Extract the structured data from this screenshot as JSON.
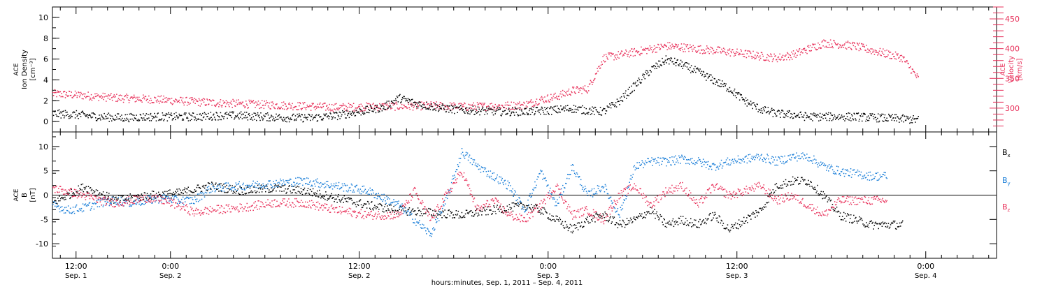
{
  "chart_data": [
    {
      "type": "scatter",
      "panel": "top",
      "ylabel_left": [
        "ACE",
        "Ion Density",
        "[cm⁻³]"
      ],
      "ylabel_right": [
        "ACE",
        "Velocity",
        "[km/s]"
      ],
      "ylim_left": [
        -1,
        11
      ],
      "yticks_left": [
        0,
        2,
        4,
        6,
        8,
        10
      ],
      "ylim_right": [
        260,
        470
      ],
      "yticks_right": [
        300,
        350,
        400,
        450
      ],
      "colors": {
        "density": "#000000",
        "velocity": "#e8305a"
      },
      "series": [
        {
          "key": "density",
          "axis": "left",
          "points": [
            [
              0,
              0.8
            ],
            [
              3,
              0.7
            ],
            [
              6,
              0.5
            ],
            [
              9,
              0.4
            ],
            [
              12,
              0.5
            ],
            [
              15,
              0.5
            ],
            [
              18,
              0.5
            ],
            [
              21,
              0.6
            ],
            [
              24,
              0.6
            ],
            [
              27,
              0.5
            ],
            [
              30,
              0.4
            ],
            [
              33,
              0.4
            ],
            [
              36,
              0.6
            ],
            [
              39,
              1.0
            ],
            [
              42,
              1.4
            ],
            [
              44,
              2.3
            ],
            [
              46,
              1.8
            ],
            [
              48,
              1.5
            ],
            [
              51,
              1.2
            ],
            [
              54,
              1.1
            ],
            [
              57,
              1.0
            ],
            [
              60,
              1.0
            ],
            [
              63,
              1.1
            ],
            [
              66,
              1.3
            ],
            [
              68,
              1.1
            ],
            [
              70,
              1.0
            ],
            [
              72,
              2.0
            ],
            [
              74,
              3.5
            ],
            [
              76,
              5.0
            ],
            [
              78,
              6.0
            ],
            [
              80,
              5.5
            ],
            [
              82,
              4.8
            ],
            [
              84,
              4.0
            ],
            [
              86,
              3.2
            ],
            [
              88,
              2.0
            ],
            [
              90,
              1.2
            ],
            [
              92,
              0.8
            ],
            [
              94,
              0.7
            ],
            [
              96,
              0.5
            ],
            [
              99,
              0.5
            ],
            [
              102,
              0.5
            ],
            [
              105,
              0.4
            ],
            [
              108,
              0.3
            ],
            [
              110,
              0.2
            ]
          ]
        },
        {
          "key": "velocity",
          "axis": "right",
          "points": [
            [
              0,
              325
            ],
            [
              4,
              322
            ],
            [
              8,
              318
            ],
            [
              12,
              316
            ],
            [
              16,
              313
            ],
            [
              20,
              310
            ],
            [
              24,
              308
            ],
            [
              28,
              306
            ],
            [
              32,
              304
            ],
            [
              36,
              302
            ],
            [
              40,
              303
            ],
            [
              44,
              304
            ],
            [
              48,
              305
            ],
            [
              52,
              303
            ],
            [
              56,
              304
            ],
            [
              60,
              306
            ],
            [
              62,
              315
            ],
            [
              64,
              320
            ],
            [
              66,
              330
            ],
            [
              68,
              333
            ],
            [
              70,
              385
            ],
            [
              72,
              390
            ],
            [
              74,
              395
            ],
            [
              76,
              400
            ],
            [
              78,
              405
            ],
            [
              80,
              403
            ],
            [
              82,
              400
            ],
            [
              84,
              398
            ],
            [
              86,
              395
            ],
            [
              88,
              392
            ],
            [
              90,
              388
            ],
            [
              92,
              385
            ],
            [
              94,
              390
            ],
            [
              96,
              400
            ],
            [
              98,
              410
            ],
            [
              100,
              408
            ],
            [
              102,
              405
            ],
            [
              104,
              398
            ],
            [
              106,
              392
            ],
            [
              108,
              385
            ],
            [
              110,
              350
            ]
          ]
        }
      ]
    },
    {
      "type": "scatter",
      "panel": "bottom",
      "ylabel_left": [
        "ACE",
        "B",
        "[nT]"
      ],
      "ylim_left": [
        -13,
        13
      ],
      "yticks_left": [
        -10,
        -5,
        0,
        5,
        10
      ],
      "colors": {
        "Bx": "#000000",
        "By": "#1a7ed8",
        "Bz": "#e8305a"
      },
      "legend": [
        {
          "key": "Bx",
          "label": "B",
          "sub": "x"
        },
        {
          "key": "By",
          "label": "B",
          "sub": "y"
        },
        {
          "key": "Bz",
          "label": "B",
          "sub": "z"
        }
      ],
      "series": [
        {
          "key": "Bx",
          "points": [
            [
              0,
              -1.5
            ],
            [
              4,
              1.8
            ],
            [
              8,
              -1
            ],
            [
              12,
              0
            ],
            [
              16,
              0.5
            ],
            [
              20,
              2
            ],
            [
              24,
              1
            ],
            [
              28,
              1.5
            ],
            [
              32,
              1
            ],
            [
              36,
              -0.5
            ],
            [
              40,
              -2
            ],
            [
              44,
              -3
            ],
            [
              48,
              -3.5
            ],
            [
              52,
              -4
            ],
            [
              56,
              -3
            ],
            [
              60,
              -2
            ],
            [
              62,
              -3
            ],
            [
              64,
              -5
            ],
            [
              66,
              -7
            ],
            [
              68,
              -5
            ],
            [
              70,
              -4
            ],
            [
              72,
              -6
            ],
            [
              74,
              -5
            ],
            [
              76,
              -3
            ],
            [
              78,
              -6
            ],
            [
              80,
              -5
            ],
            [
              82,
              -6
            ],
            [
              84,
              -4
            ],
            [
              86,
              -7
            ],
            [
              88,
              -5
            ],
            [
              90,
              -3
            ],
            [
              92,
              2
            ],
            [
              94,
              3
            ],
            [
              96,
              3
            ],
            [
              98,
              0
            ],
            [
              100,
              -4
            ],
            [
              102,
              -5
            ],
            [
              104,
              -6
            ],
            [
              106,
              -6
            ],
            [
              108,
              -6
            ]
          ]
        },
        {
          "key": "By",
          "points": [
            [
              0,
              -2
            ],
            [
              2,
              -3
            ],
            [
              4,
              -2.5
            ],
            [
              6,
              -1.5
            ],
            [
              8,
              -1
            ],
            [
              10,
              -1.5
            ],
            [
              12,
              -1
            ],
            [
              14,
              -0.5
            ],
            [
              16,
              -1
            ],
            [
              18,
              -1
            ],
            [
              20,
              1.5
            ],
            [
              24,
              2
            ],
            [
              28,
              2.5
            ],
            [
              32,
              3
            ],
            [
              36,
              2
            ],
            [
              40,
              1
            ],
            [
              44,
              -2
            ],
            [
              46,
              -5
            ],
            [
              48,
              -8
            ],
            [
              50,
              -1
            ],
            [
              52,
              9
            ],
            [
              54,
              6
            ],
            [
              56,
              4
            ],
            [
              58,
              2
            ],
            [
              60,
              -3
            ],
            [
              62,
              5
            ],
            [
              64,
              -2
            ],
            [
              66,
              6
            ],
            [
              68,
              0
            ],
            [
              70,
              2
            ],
            [
              72,
              -4
            ],
            [
              74,
              6
            ],
            [
              76,
              7
            ],
            [
              78,
              7
            ],
            [
              80,
              7.5
            ],
            [
              82,
              7
            ],
            [
              84,
              6
            ],
            [
              86,
              7
            ],
            [
              88,
              7.5
            ],
            [
              90,
              8
            ],
            [
              92,
              7
            ],
            [
              94,
              8
            ],
            [
              96,
              8
            ],
            [
              98,
              6
            ],
            [
              100,
              5
            ],
            [
              104,
              4
            ],
            [
              106,
              4
            ]
          ]
        },
        {
          "key": "Bz",
          "points": [
            [
              0,
              1.5
            ],
            [
              2,
              0.8
            ],
            [
              4,
              0
            ],
            [
              6,
              -1
            ],
            [
              8,
              -1.5
            ],
            [
              10,
              -1
            ],
            [
              12,
              -0.5
            ],
            [
              14,
              -1
            ],
            [
              16,
              -2
            ],
            [
              18,
              -3.5
            ],
            [
              20,
              -3
            ],
            [
              24,
              -2.5
            ],
            [
              28,
              -1.5
            ],
            [
              32,
              -1.5
            ],
            [
              36,
              -3
            ],
            [
              40,
              -4
            ],
            [
              44,
              -4
            ],
            [
              46,
              1
            ],
            [
              48,
              -5
            ],
            [
              50,
              0
            ],
            [
              52,
              5
            ],
            [
              54,
              -3
            ],
            [
              56,
              -1
            ],
            [
              58,
              -4
            ],
            [
              60,
              -5
            ],
            [
              62,
              -2
            ],
            [
              64,
              2
            ],
            [
              66,
              -4
            ],
            [
              68,
              -3
            ],
            [
              70,
              -5
            ],
            [
              72,
              0
            ],
            [
              74,
              2
            ],
            [
              76,
              -2
            ],
            [
              78,
              1
            ],
            [
              80,
              2
            ],
            [
              82,
              -2
            ],
            [
              84,
              2
            ],
            [
              86,
              0
            ],
            [
              88,
              1
            ],
            [
              90,
              2
            ],
            [
              92,
              -1
            ],
            [
              94,
              0
            ],
            [
              96,
              -2
            ],
            [
              98,
              -4
            ],
            [
              100,
              -1
            ],
            [
              102,
              -1
            ],
            [
              104,
              -1
            ],
            [
              106,
              -1
            ]
          ]
        }
      ]
    }
  ],
  "x_axis": {
    "title": "hours:minutes, Sep.  1, 2011 – Sep.  4, 2011",
    "xlim_hours": [
      0,
      120
    ],
    "major_ticks": [
      {
        "hour": 3,
        "time": "12:00",
        "date": "Sep. 1"
      },
      {
        "hour": 15,
        "time": "0:00",
        "date": "Sep. 2"
      },
      {
        "hour": 39,
        "time": "12:00",
        "date": "Sep. 2"
      },
      {
        "hour": 63,
        "time": "0:00",
        "date": "Sep. 3"
      },
      {
        "hour": 87,
        "time": "12:00",
        "date": "Sep. 3"
      },
      {
        "hour": 111,
        "time": "0:00",
        "date": "Sep. 4"
      },
      {
        "hour": 135,
        "time": "12:00",
        "date": "Sep. 4"
      }
    ]
  }
}
